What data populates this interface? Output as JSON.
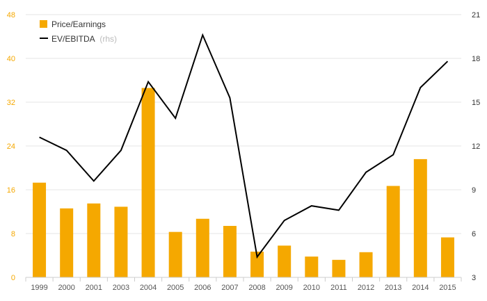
{
  "chart_data": {
    "type": "bar",
    "categories": [
      "1999",
      "2000",
      "2001",
      "2003",
      "2004",
      "2005",
      "2006",
      "2007",
      "2008",
      "2009",
      "2010",
      "2011",
      "2012",
      "2013",
      "2014",
      "2015"
    ],
    "series": [
      {
        "name": "Price/Earnings",
        "type": "bar",
        "axis": "left",
        "color": "#f5a800",
        "values": [
          17.3,
          12.6,
          13.5,
          12.9,
          34.6,
          8.3,
          10.7,
          9.4,
          4.7,
          5.8,
          3.8,
          3.2,
          4.6,
          16.7,
          21.6,
          7.3
        ]
      },
      {
        "name": "EV/EBITDA",
        "type": "line",
        "axis": "right",
        "color": "#000000",
        "values": [
          12.6,
          11.7,
          9.6,
          11.7,
          16.4,
          13.9,
          19.6,
          15.3,
          4.4,
          6.9,
          7.9,
          7.6,
          10.2,
          11.4,
          16.0,
          17.8
        ]
      }
    ],
    "legend": {
      "position": "top-left",
      "entries": [
        "Price/Earnings",
        "EV/EBITDA"
      ],
      "rhs_suffix": "(rhs)"
    },
    "y_left": {
      "min": 0,
      "max": 48,
      "ticks": [
        "0",
        "8",
        "16",
        "24",
        "32",
        "40",
        "48"
      ]
    },
    "y_right": {
      "min": 3,
      "max": 21,
      "ticks": [
        "3",
        "6",
        "9",
        "12",
        "15",
        "18",
        "21"
      ]
    },
    "grid": true
  }
}
